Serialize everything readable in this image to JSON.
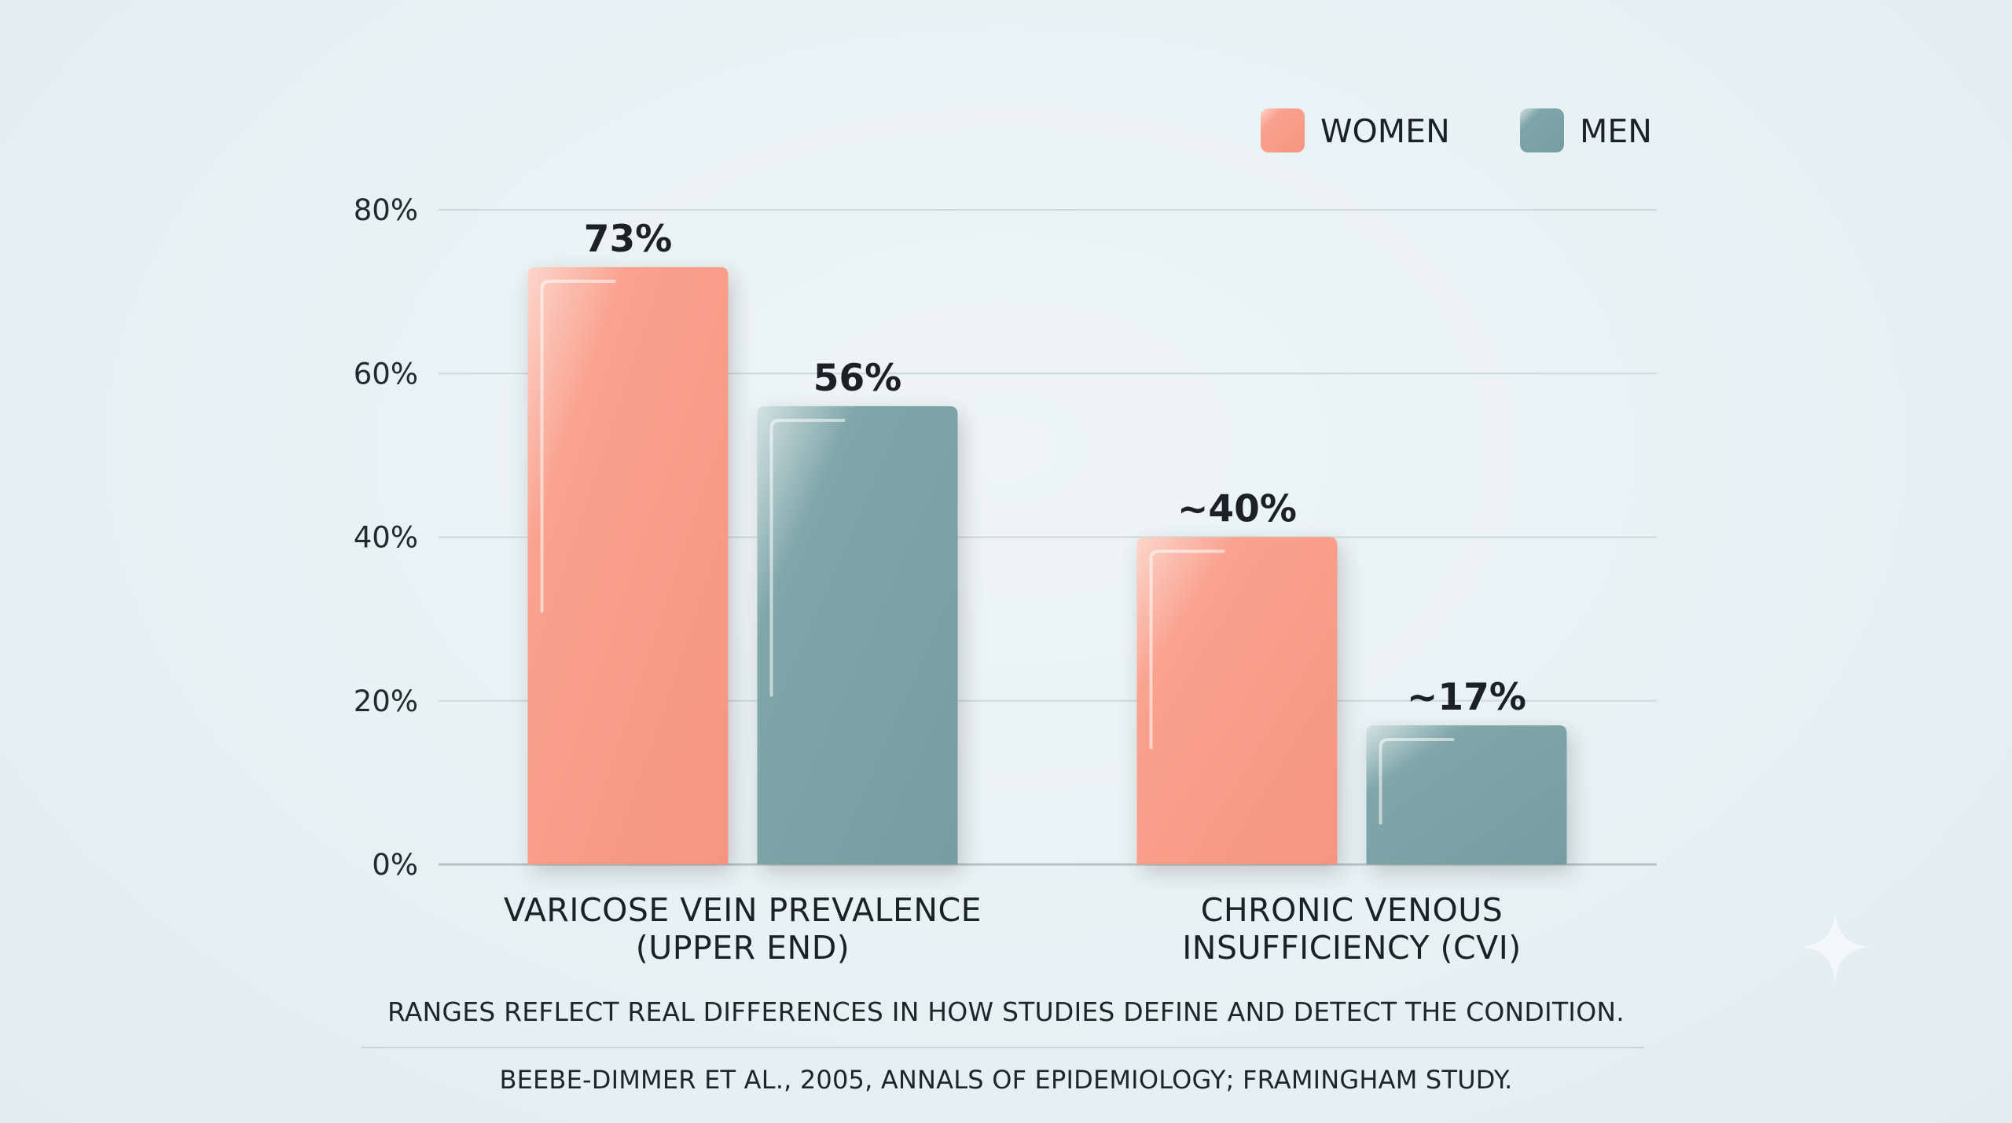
{
  "chart_data": {
    "type": "bar",
    "categories": [
      [
        "VARICOSE VEIN PREVALENCE",
        "(UPPER END)"
      ],
      [
        "CHRONIC VENOUS",
        "INSUFFICIENCY (CVI)"
      ]
    ],
    "series": [
      {
        "name": "WOMEN",
        "values": [
          73,
          40
        ],
        "labels": [
          "73%",
          "~40%"
        ],
        "color": "#f79a85"
      },
      {
        "name": "MEN",
        "values": [
          56,
          17
        ],
        "labels": [
          "56%",
          "~17%"
        ],
        "color": "#7aa1a5"
      }
    ],
    "ylim": [
      0,
      80
    ],
    "yticks": [
      0,
      20,
      40,
      60,
      80
    ],
    "ytick_labels": [
      "0%",
      "20%",
      "40%",
      "60%",
      "80%"
    ],
    "grid": true,
    "legend_position": "top-right"
  },
  "notes": {
    "ranges": "RANGES REFLECT REAL DIFFERENCES IN HOW STUDIES DEFINE AND DETECT THE CONDITION.",
    "source": "BEEBE-DIMMER ET AL., 2005, ANNALS OF EPIDEMIOLOGY; FRAMINGHAM STUDY."
  }
}
